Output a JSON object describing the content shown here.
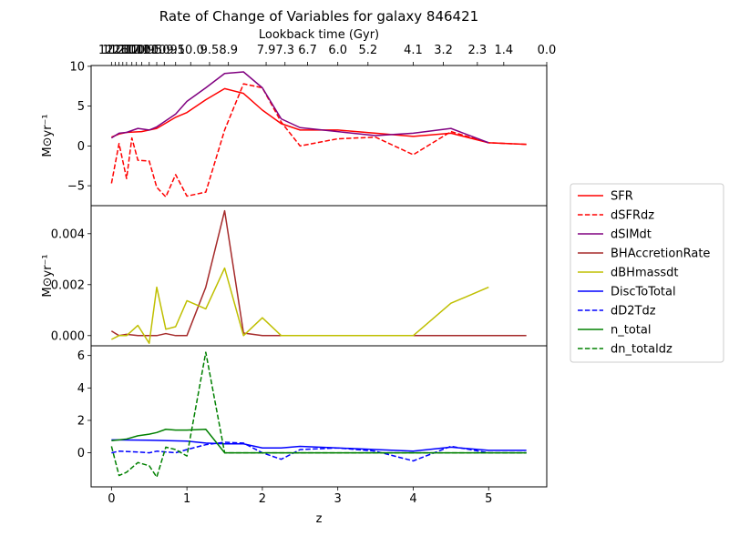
{
  "chart_data": {
    "type": "line",
    "title": "Rate of Change of Variables for galaxy 846421",
    "xlabel": "z",
    "top_xlabel": "Lookback time (Gyr)",
    "xlim": [
      -0.27,
      5.77
    ],
    "xticks": [
      0,
      1,
      2,
      3,
      4,
      5
    ],
    "top_ticks": [
      {
        "z": 0.0,
        "label": "12.2"
      },
      {
        "z": 0.05,
        "label": "11.6"
      },
      {
        "z": 0.1,
        "label": "12.1"
      },
      {
        "z": 0.15,
        "label": "12.0"
      },
      {
        "z": 0.2,
        "label": "11.7"
      },
      {
        "z": 0.27,
        "label": "11.0"
      },
      {
        "z": 0.33,
        "label": "11.1"
      },
      {
        "z": 0.4,
        "label": "10.9"
      },
      {
        "z": 0.5,
        "label": "10.5"
      },
      {
        "z": 0.6,
        "label": "10.0"
      },
      {
        "z": 0.7,
        "label": "10.9"
      },
      {
        "z": 0.85,
        "label": "9.5"
      },
      {
        "z": 1.05,
        "label": "10.0"
      },
      {
        "z": 1.3,
        "label": "9.5"
      },
      {
        "z": 1.55,
        "label": "8.9"
      },
      {
        "z": 2.05,
        "label": "7.9"
      },
      {
        "z": 2.3,
        "label": "7.3"
      },
      {
        "z": 2.6,
        "label": "6.7"
      },
      {
        "z": 3.0,
        "label": "6.0"
      },
      {
        "z": 3.4,
        "label": "5.2"
      },
      {
        "z": 4.0,
        "label": "4.1"
      },
      {
        "z": 4.4,
        "label": "3.2"
      },
      {
        "z": 4.85,
        "label": "2.3"
      },
      {
        "z": 5.2,
        "label": "1.4"
      },
      {
        "z": 5.77,
        "label": "0.0"
      }
    ],
    "panels": [
      {
        "ylabel": "M⊙yr⁻¹",
        "ylim": [
          -7.5,
          10.1
        ],
        "yticks": [
          -5,
          0,
          5,
          10
        ],
        "ytick_labels": [
          "−5",
          "0",
          "5",
          "10"
        ],
        "series": [
          {
            "name": "SFR",
            "color": "#ff0000",
            "dash": "solid",
            "x": [
              0,
              0.1,
              0.2,
              0.4,
              0.6,
              0.85,
              1.0,
              1.25,
              1.5,
              1.75,
              2.0,
              2.25,
              2.5,
              3.0,
              3.5,
              4.0,
              4.5,
              5.0,
              5.5
            ],
            "y": [
              1.1,
              1.5,
              1.7,
              1.8,
              2.2,
              3.6,
              4.2,
              5.8,
              7.2,
              6.6,
              4.5,
              2.8,
              2.0,
              2.0,
              1.6,
              1.2,
              1.6,
              0.4,
              0.2
            ]
          },
          {
            "name": "dSFRdz",
            "color": "#ff0000",
            "dash": "dashed",
            "x": [
              0,
              0.1,
              0.2,
              0.27,
              0.35,
              0.5,
              0.6,
              0.72,
              0.85,
              1.0,
              1.25,
              1.5,
              1.75,
              2.0,
              2.25,
              2.5,
              3.0,
              3.5,
              4.0,
              4.5,
              5.0,
              5.5
            ],
            "y": [
              -4.7,
              0.3,
              -4.1,
              1.0,
              -1.8,
              -1.9,
              -5.2,
              -6.4,
              -3.6,
              -6.3,
              -5.8,
              2.0,
              7.8,
              7.3,
              3.0,
              0.0,
              0.9,
              1.1,
              -1.1,
              1.8,
              0.4,
              0.2
            ]
          },
          {
            "name": "dSIMdt",
            "color": "#800080",
            "dash": "solid",
            "x": [
              0,
              0.1,
              0.2,
              0.35,
              0.5,
              0.6,
              0.85,
              1.0,
              1.25,
              1.5,
              1.75,
              2.0,
              2.25,
              2.5,
              3.0,
              3.5,
              4.0,
              4.5,
              5.0
            ],
            "y": [
              1.0,
              1.6,
              1.7,
              2.2,
              2.0,
              2.4,
              4.0,
              5.6,
              7.3,
              9.1,
              9.3,
              7.3,
              3.4,
              2.3,
              1.8,
              1.3,
              1.6,
              2.2,
              0.4
            ]
          }
        ]
      },
      {
        "ylabel": "M⊙yr⁻¹",
        "ylim": [
          -0.0004,
          0.0051
        ],
        "yticks": [
          0,
          0.002,
          0.004
        ],
        "ytick_labels": [
          "0.000",
          "0.002",
          "0.004"
        ],
        "series": [
          {
            "name": "BHAccretionRate",
            "color": "#a52a2a",
            "dash": "solid",
            "x": [
              0,
              0.1,
              0.2,
              0.35,
              0.5,
              0.6,
              0.72,
              0.85,
              1.0,
              1.25,
              1.5,
              1.75,
              2.0,
              2.25,
              2.5,
              3.0,
              3.5,
              4.0,
              4.5,
              5.0,
              5.5
            ],
            "y": [
              0.00018,
              0.0,
              5e-05,
              0.0,
              0.0,
              0.0,
              8e-05,
              0.0,
              0.0,
              0.0019,
              0.0049,
              0.0001,
              0.0,
              0.0,
              0.0,
              0.0,
              0.0,
              0.0,
              0.0,
              0.0,
              0.0
            ]
          },
          {
            "name": "dBHmassdt",
            "color": "#bfbf00",
            "dash": "solid",
            "x": [
              0,
              0.1,
              0.2,
              0.35,
              0.5,
              0.6,
              0.72,
              0.85,
              1.0,
              1.25,
              1.5,
              1.75,
              2.0,
              2.25,
              2.5,
              3.0,
              3.5,
              4.0,
              4.5,
              5.0
            ],
            "y": [
              -0.00015,
              0.0,
              0.0,
              0.0004,
              -0.0003,
              0.0019,
              0.00025,
              0.00035,
              0.00137,
              0.00105,
              0.00265,
              0.0,
              0.0007,
              0.0,
              0.0,
              0.0,
              0.0,
              0.0,
              0.00127,
              0.0019
            ]
          }
        ]
      },
      {
        "ylabel": "",
        "ylim": [
          -2.1,
          6.6
        ],
        "yticks": [
          0,
          2,
          4,
          6
        ],
        "ytick_labels": [
          "0",
          "2",
          "4",
          "6"
        ],
        "series": [
          {
            "name": "DiscToTotal",
            "color": "#0000ff",
            "dash": "solid",
            "x": [
              0,
              0.5,
              1.0,
              1.25,
              1.5,
              1.75,
              2.0,
              2.25,
              2.5,
              3.0,
              3.5,
              4.0,
              4.5,
              5.0,
              5.5
            ],
            "y": [
              0.8,
              0.78,
              0.72,
              0.6,
              0.55,
              0.55,
              0.3,
              0.3,
              0.4,
              0.3,
              0.2,
              0.1,
              0.35,
              0.15,
              0.15
            ]
          },
          {
            "name": "dD2Tdz",
            "color": "#0000ff",
            "dash": "dashed",
            "x": [
              0,
              0.1,
              0.35,
              0.5,
              0.6,
              0.85,
              1.0,
              1.25,
              1.5,
              1.75,
              2.0,
              2.25,
              2.5,
              3.0,
              3.5,
              4.0,
              4.5,
              5.0,
              5.5
            ],
            "y": [
              0.0,
              0.1,
              0.05,
              0.0,
              0.1,
              0.0,
              0.2,
              0.5,
              0.65,
              0.6,
              0.0,
              -0.4,
              0.2,
              0.3,
              0.1,
              -0.5,
              0.4,
              0.0,
              0.0
            ]
          },
          {
            "name": "n_total",
            "color": "#008000",
            "dash": "solid",
            "x": [
              0,
              0.1,
              0.2,
              0.35,
              0.5,
              0.6,
              0.72,
              0.85,
              1.0,
              1.25,
              1.5,
              1.75,
              2.0,
              2.5,
              3.0,
              3.5,
              4.0,
              4.5,
              5.0,
              5.5
            ],
            "y": [
              0.75,
              0.8,
              0.85,
              1.05,
              1.15,
              1.25,
              1.45,
              1.4,
              1.4,
              1.45,
              0.0,
              0.0,
              0.0,
              0.0,
              0.0,
              0.0,
              0.0,
              0.0,
              0.0,
              0.0
            ]
          },
          {
            "name": "dn_totaldz",
            "color": "#008000",
            "dash": "dashed",
            "x": [
              0,
              0.1,
              0.2,
              0.35,
              0.5,
              0.6,
              0.72,
              0.85,
              1.0,
              1.25,
              1.5,
              1.75,
              2.0,
              2.5,
              3.0,
              3.5,
              4.0,
              4.5,
              5.0,
              5.5
            ],
            "y": [
              0.4,
              -1.4,
              -1.2,
              -0.6,
              -0.8,
              -1.5,
              0.35,
              0.2,
              -0.2,
              6.2,
              0.0,
              0.0,
              0.0,
              0.0,
              0.0,
              0.0,
              0.0,
              0.0,
              0.0,
              0.0
            ]
          }
        ]
      }
    ],
    "legend": {
      "placement": "right",
      "entries": [
        {
          "name": "SFR",
          "color": "#ff0000",
          "dash": "solid"
        },
        {
          "name": "dSFRdz",
          "color": "#ff0000",
          "dash": "dashed"
        },
        {
          "name": "dSIMdt",
          "color": "#800080",
          "dash": "solid"
        },
        {
          "name": "BHAccretionRate",
          "color": "#a52a2a",
          "dash": "solid"
        },
        {
          "name": "dBHmassdt",
          "color": "#bfbf00",
          "dash": "solid"
        },
        {
          "name": "DiscToTotal",
          "color": "#0000ff",
          "dash": "solid"
        },
        {
          "name": "dD2Tdz",
          "color": "#0000ff",
          "dash": "dashed"
        },
        {
          "name": "n_total",
          "color": "#008000",
          "dash": "solid"
        },
        {
          "name": "dn_totaldz",
          "color": "#008000",
          "dash": "dashed"
        }
      ]
    }
  }
}
